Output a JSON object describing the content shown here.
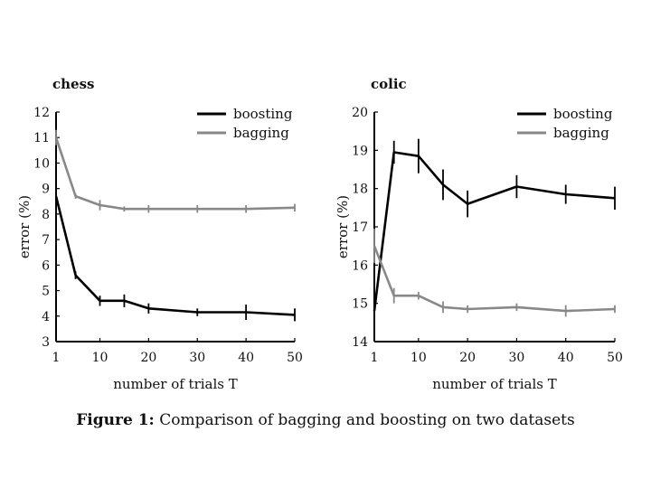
{
  "caption": {
    "label": "Figure 1:",
    "text": "Comparison of bagging and boosting on two datasets"
  },
  "chart_data": [
    {
      "type": "line",
      "title": "chess",
      "xlabel": "number of trials T",
      "ylabel": "error (%)",
      "xlim": [
        1,
        50
      ],
      "ylim": [
        3,
        12
      ],
      "xticks": [
        1,
        10,
        20,
        30,
        40,
        50
      ],
      "yticks": [
        3,
        4,
        5,
        6,
        7,
        8,
        9,
        10,
        11,
        12
      ],
      "grid": false,
      "legend_position": "top-right",
      "series": [
        {
          "name": "boosting",
          "color": "#000000",
          "x": [
            1,
            5,
            10,
            15,
            20,
            30,
            40,
            50
          ],
          "y": [
            8.7,
            5.6,
            4.6,
            4.6,
            4.3,
            4.15,
            4.15,
            4.05
          ],
          "err": [
            0.3,
            0.15,
            0.2,
            0.25,
            0.2,
            0.15,
            0.3,
            0.25
          ]
        },
        {
          "name": "bagging",
          "color": "#888888",
          "x": [
            1,
            5,
            10,
            15,
            20,
            30,
            40,
            50
          ],
          "y": [
            11.0,
            8.7,
            8.35,
            8.2,
            8.2,
            8.2,
            8.2,
            8.25
          ],
          "err": [
            0.3,
            0.1,
            0.2,
            0.1,
            0.15,
            0.15,
            0.15,
            0.15
          ]
        }
      ]
    },
    {
      "type": "line",
      "title": "colic",
      "xlabel": "number of trials T",
      "ylabel": "error (%)",
      "xlim": [
        1,
        50
      ],
      "ylim": [
        14,
        20
      ],
      "xticks": [
        1,
        10,
        20,
        30,
        40,
        50
      ],
      "yticks": [
        14,
        15,
        16,
        17,
        18,
        19,
        20
      ],
      "grid": false,
      "legend_position": "top-right",
      "series": [
        {
          "name": "boosting",
          "color": "#000000",
          "x": [
            1,
            5,
            10,
            15,
            20,
            30,
            40,
            50
          ],
          "y": [
            14.8,
            18.95,
            18.85,
            18.1,
            17.6,
            18.05,
            17.85,
            17.75
          ],
          "err": [
            0.2,
            0.3,
            0.45,
            0.4,
            0.35,
            0.3,
            0.25,
            0.3
          ]
        },
        {
          "name": "bagging",
          "color": "#888888",
          "x": [
            1,
            5,
            10,
            15,
            20,
            30,
            40,
            50
          ],
          "y": [
            16.5,
            15.2,
            15.2,
            14.9,
            14.85,
            14.9,
            14.8,
            14.85
          ],
          "err": [
            0.45,
            0.2,
            0.1,
            0.15,
            0.1,
            0.1,
            0.15,
            0.1
          ]
        }
      ]
    }
  ]
}
